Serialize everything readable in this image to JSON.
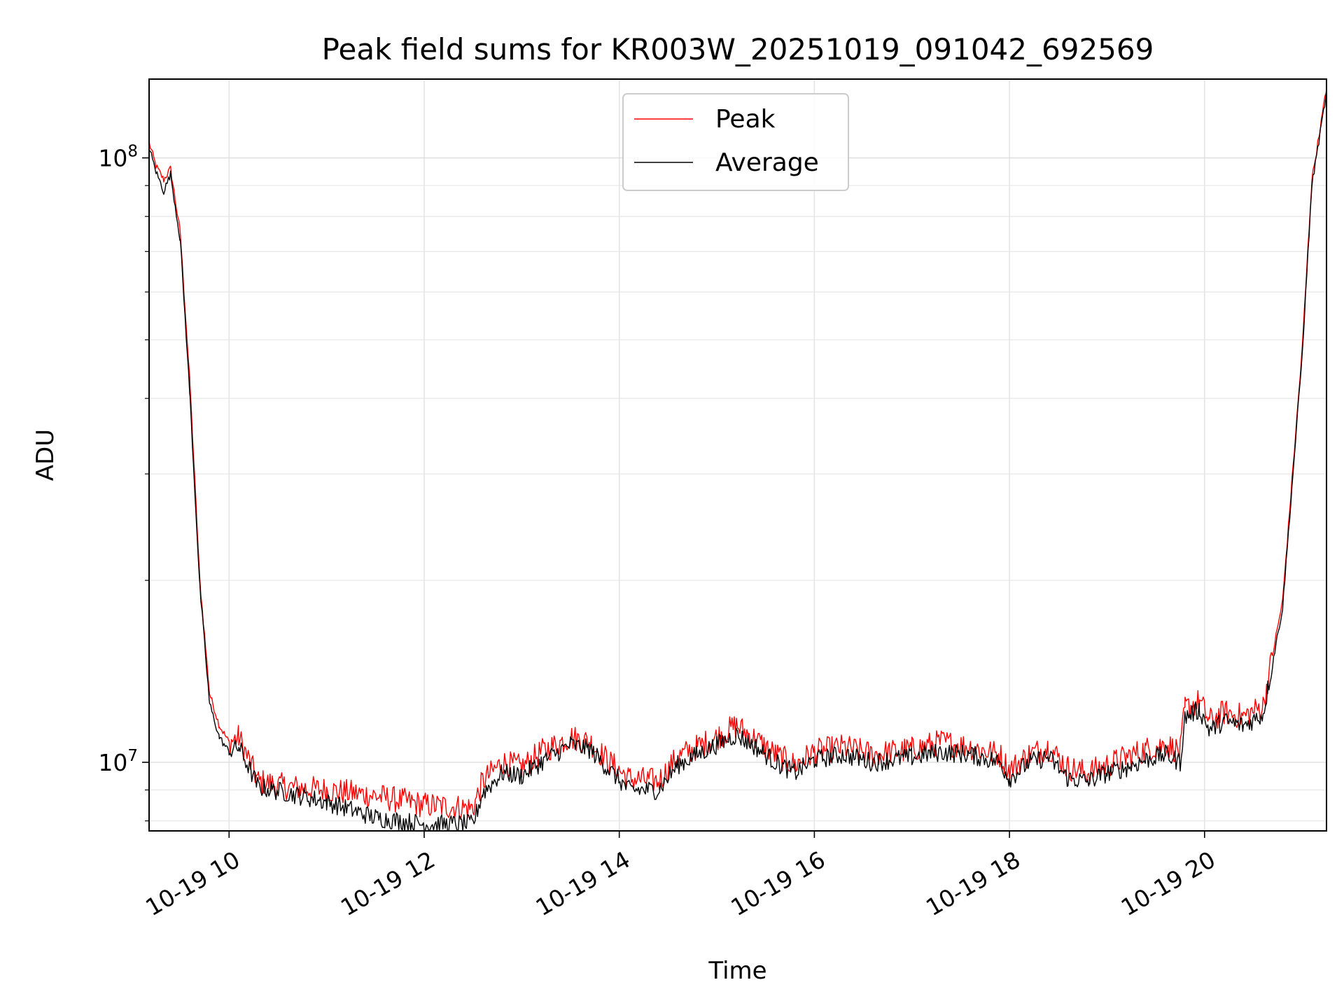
{
  "chart_data": {
    "type": "line",
    "title": "Peak field sums for KR003W_20251019_091042_692569",
    "xlabel": "Time",
    "ylabel": "ADU",
    "yscale": "log",
    "ylim": [
      7700000,
      135000000
    ],
    "xlim_hours": [
      9.18,
      21.25
    ],
    "x_ticks": [
      {
        "value": 10,
        "label": "10-19 10"
      },
      {
        "value": 12,
        "label": "10-19 12"
      },
      {
        "value": 14,
        "label": "10-19 14"
      },
      {
        "value": 16,
        "label": "10-19 16"
      },
      {
        "value": 18,
        "label": "10-19 18"
      },
      {
        "value": 20,
        "label": "10-19 20"
      }
    ],
    "y_major_ticks": [
      {
        "value": 10000000,
        "base": "10",
        "exp": "7"
      },
      {
        "value": 100000000,
        "base": "10",
        "exp": "8"
      }
    ],
    "y_minor_ticks": [
      8000000,
      9000000,
      20000000,
      30000000,
      40000000,
      50000000,
      60000000,
      70000000,
      80000000,
      90000000
    ],
    "grid": true,
    "legend": {
      "position": "upper-center",
      "entries": [
        {
          "name": "Peak",
          "color": "#ff0000"
        },
        {
          "name": "Average",
          "color": "#000000"
        }
      ]
    },
    "series": [
      {
        "name": "Peak",
        "color": "#ff0000",
        "x_hours": [
          9.18,
          9.25,
          9.33,
          9.4,
          9.5,
          9.6,
          9.7,
          9.8,
          9.9,
          10.0,
          10.1,
          10.3,
          10.6,
          11.0,
          11.5,
          12.0,
          12.5,
          12.6,
          12.8,
          13.0,
          13.2,
          13.5,
          13.7,
          13.9,
          14.1,
          14.4,
          14.6,
          14.8,
          15.0,
          15.2,
          15.4,
          15.6,
          15.8,
          16.0,
          16.3,
          16.6,
          17.0,
          17.3,
          17.6,
          17.9,
          18.0,
          18.2,
          18.4,
          18.6,
          18.8,
          19.0,
          19.2,
          19.4,
          19.6,
          19.75,
          19.8,
          19.95,
          20.05,
          20.2,
          20.4,
          20.6,
          20.8,
          21.0,
          21.1,
          21.25
        ],
        "y": [
          106000000,
          97000000,
          92000000,
          96000000,
          75000000,
          42000000,
          20000000,
          13000000,
          11500000,
          10800000,
          11000000,
          9300000,
          9100000,
          9000000,
          8800000,
          8500000,
          8400000,
          9300000,
          10000000,
          9800000,
          10400000,
          11000000,
          10800000,
          10000000,
          9400000,
          9300000,
          10200000,
          10600000,
          11000000,
          11500000,
          10900000,
          10300000,
          9900000,
          10400000,
          10600000,
          10300000,
          10500000,
          10800000,
          10600000,
          10300000,
          9700000,
          10300000,
          10600000,
          9800000,
          9600000,
          9900000,
          10200000,
          10500000,
          10700000,
          10400000,
          12300000,
          12600000,
          11700000,
          12100000,
          11900000,
          12400000,
          18500000,
          48000000,
          92000000,
          130000000
        ]
      },
      {
        "name": "Average",
        "color": "#000000",
        "x_hours": [
          9.18,
          9.25,
          9.33,
          9.4,
          9.5,
          9.6,
          9.7,
          9.8,
          9.9,
          10.0,
          10.1,
          10.3,
          10.6,
          11.0,
          11.5,
          12.0,
          12.5,
          12.6,
          12.8,
          13.0,
          13.2,
          13.5,
          13.7,
          13.9,
          14.1,
          14.4,
          14.6,
          14.8,
          15.0,
          15.2,
          15.4,
          15.6,
          15.8,
          16.0,
          16.3,
          16.6,
          17.0,
          17.3,
          17.6,
          17.9,
          18.0,
          18.2,
          18.4,
          18.6,
          18.8,
          19.0,
          19.2,
          19.4,
          19.6,
          19.75,
          19.8,
          19.95,
          20.05,
          20.2,
          20.4,
          20.6,
          20.8,
          21.0,
          21.1,
          21.25
        ],
        "y": [
          104000000,
          95000000,
          88000000,
          94000000,
          73000000,
          40000000,
          19500000,
          12500000,
          11000000,
          10400000,
          10600000,
          9100000,
          8900000,
          8600000,
          8100000,
          7900000,
          7900000,
          8900000,
          9600000,
          9500000,
          10000000,
          10700000,
          10500000,
          9700000,
          9000000,
          9000000,
          9900000,
          10300000,
          10700000,
          11100000,
          10600000,
          10000000,
          9600000,
          10100000,
          10300000,
          10000000,
          10200000,
          10400000,
          10300000,
          10000000,
          9400000,
          10000000,
          10200000,
          9400000,
          9300000,
          9600000,
          9800000,
          10100000,
          10300000,
          10000000,
          11900000,
          12200000,
          11300000,
          11700000,
          11500000,
          12000000,
          18000000,
          47000000,
          90000000,
          128000000
        ]
      }
    ]
  }
}
